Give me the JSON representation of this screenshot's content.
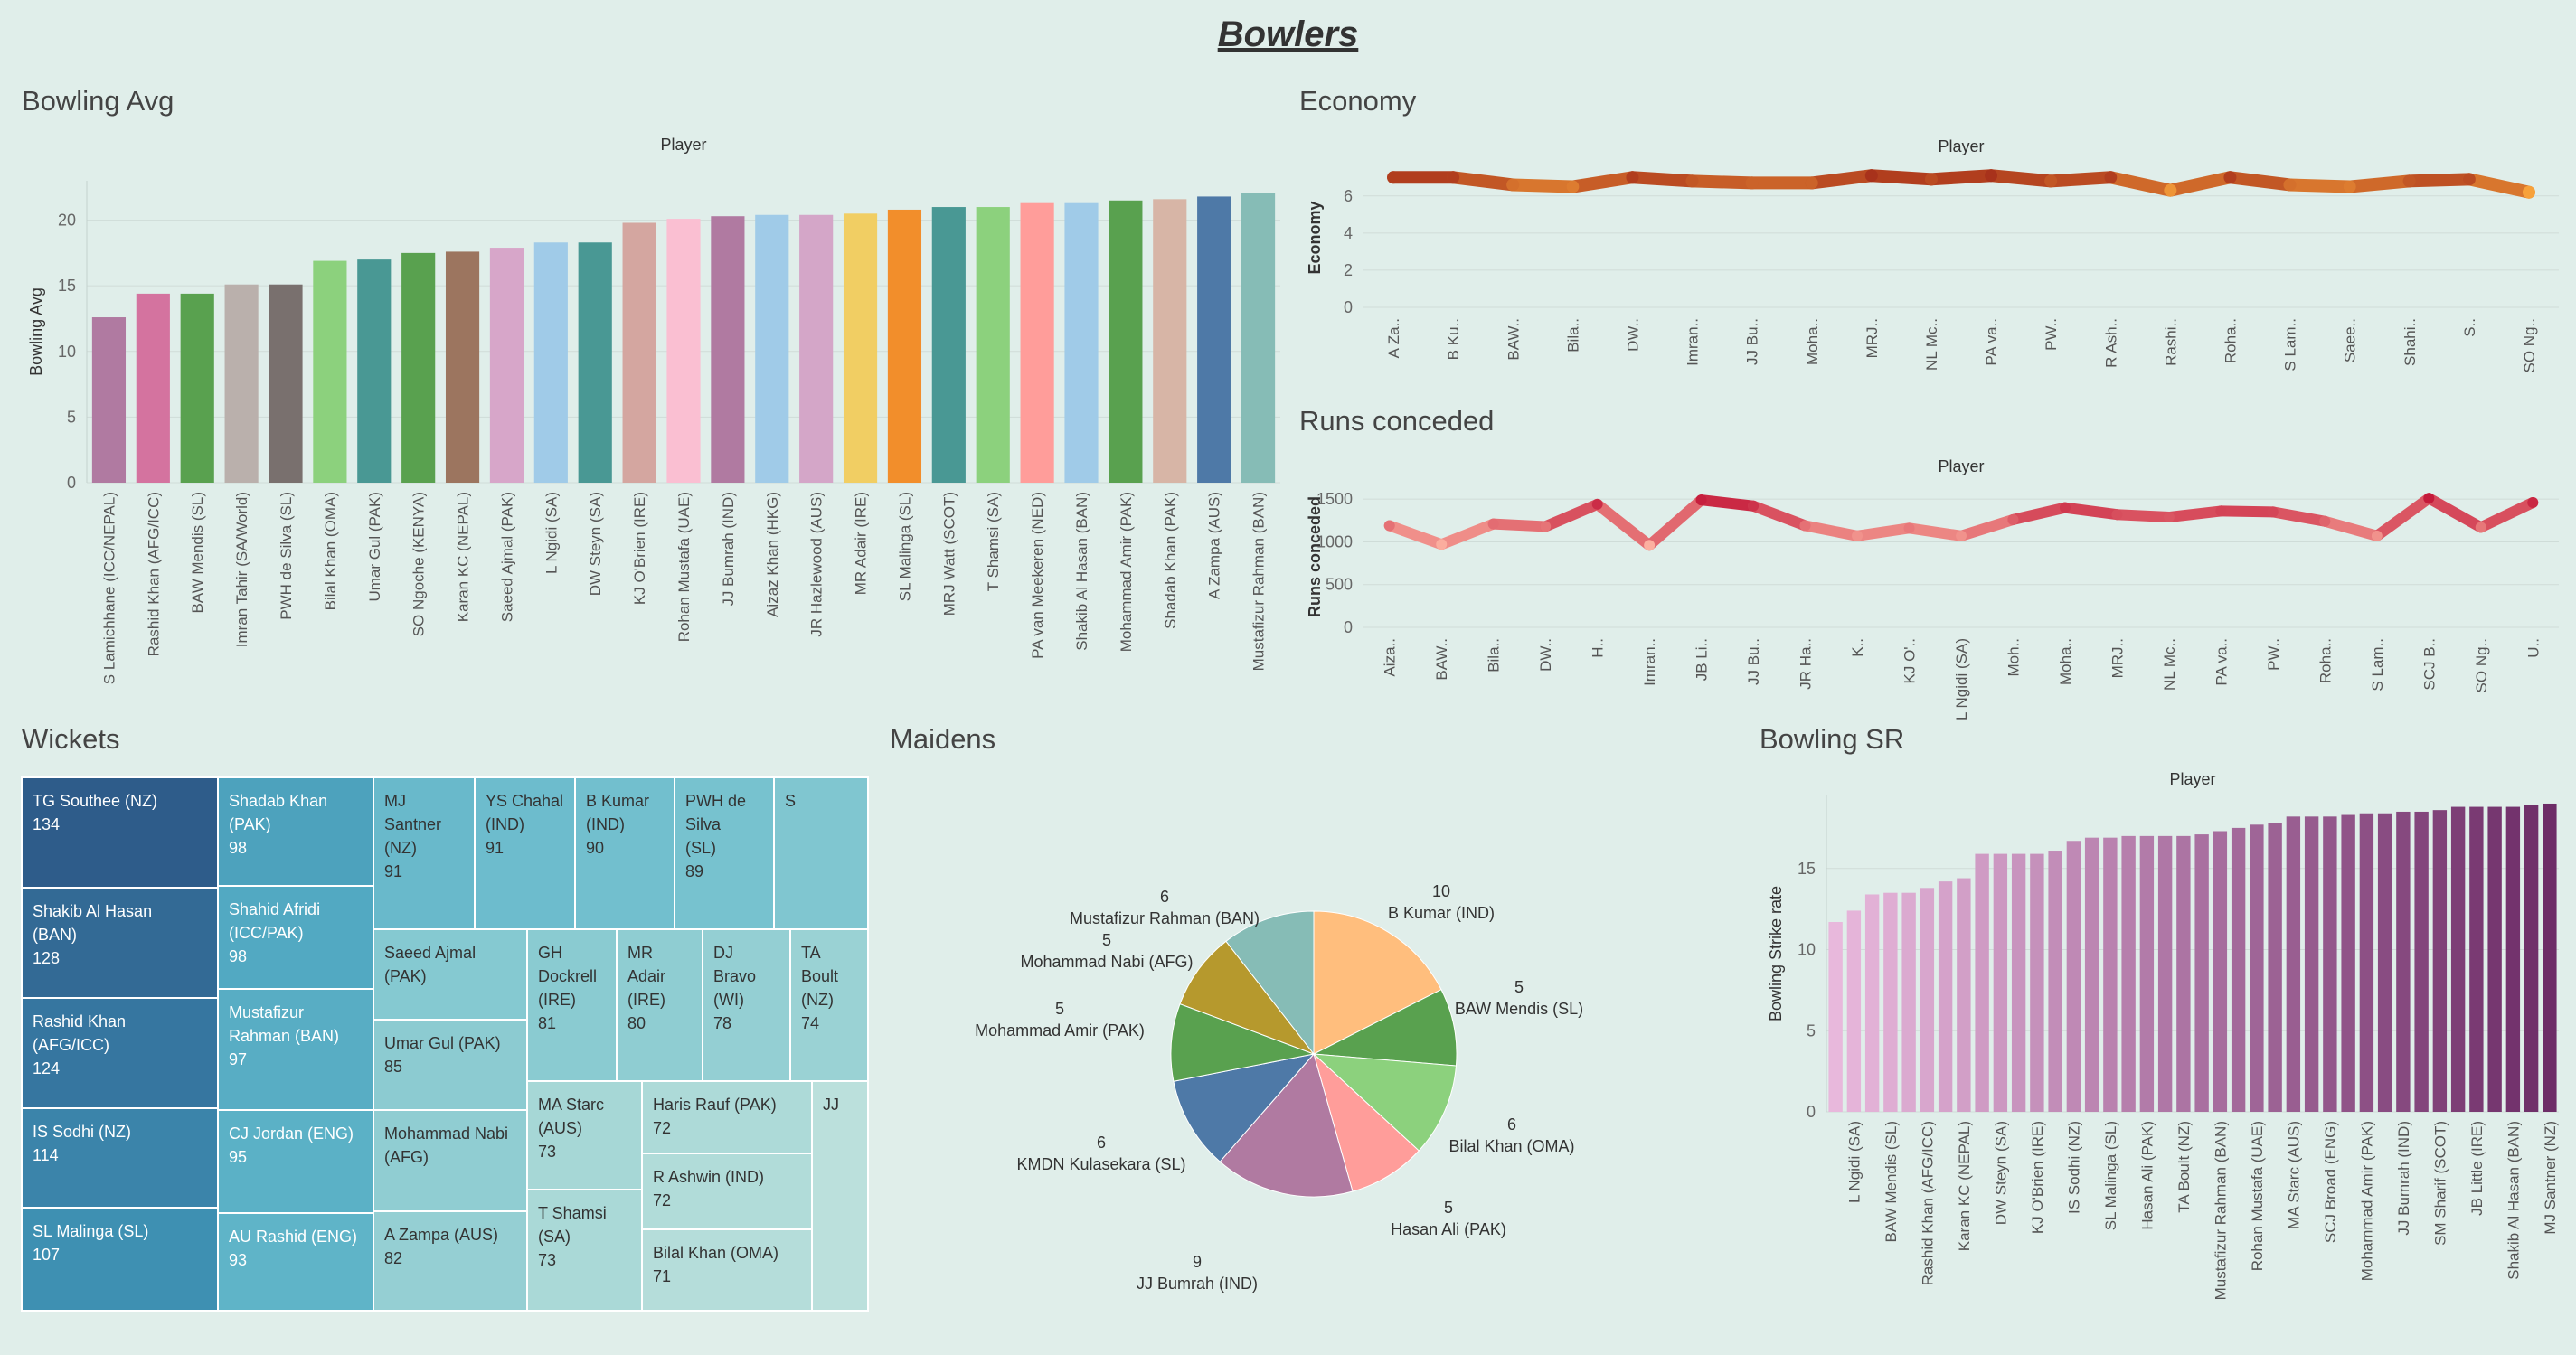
{
  "dashboard_title": "Bowlers",
  "chart_data": [
    {
      "id": "bowling_avg",
      "type": "bar",
      "title": "Bowling Avg",
      "header": "Player",
      "ylabel": "Bowling Avg",
      "ylim": [
        0,
        23
      ],
      "yticks": [
        0,
        5,
        10,
        15,
        20
      ],
      "grid": true,
      "categories": [
        "S Lamichhane (ICC/NEPAL)",
        "Rashid Khan (AFG/ICC)",
        "BAW Mendis (SL)",
        "Imran Tahir (SA/World)",
        "PWH de Silva (SL)",
        "Bilal Khan (OMA)",
        "Umar Gul (PAK)",
        "SO Ngoche (KENYA)",
        "Karan KC (NEPAL)",
        "Saeed Ajmal (PAK)",
        "L Ngidi (SA)",
        "DW Steyn (SA)",
        "KJ O'Brien (IRE)",
        "Rohan Mustafa (UAE)",
        "JJ Bumrah (IND)",
        "Aizaz Khan (HKG)",
        "JR Hazlewood (AUS)",
        "MR Adair (IRE)",
        "SL Malinga (SL)",
        "MRJ Watt (SCOT)",
        "T Shamsi (SA)",
        "PA van Meekeren (NED)",
        "Shakib Al Hasan (BAN)",
        "Mohammad Amir (PAK)",
        "Shadab Khan (PAK)",
        "A Zampa (AUS)",
        "Mustafizur Rahman (BAN)"
      ],
      "values": [
        12.6,
        14.4,
        14.4,
        15.1,
        15.1,
        16.9,
        17.0,
        17.5,
        17.6,
        17.9,
        18.3,
        18.3,
        19.8,
        20.1,
        20.3,
        20.4,
        20.4,
        20.5,
        20.8,
        21.0,
        21.0,
        21.3,
        21.3,
        21.5,
        21.6,
        21.8,
        22.1
      ],
      "colors": [
        "#b07aa1",
        "#d4739f",
        "#59a14f",
        "#bab0ac",
        "#79706e",
        "#8cd17d",
        "#499894",
        "#59a14f",
        "#9c755f",
        "#d7a6c9",
        "#a0cbe8",
        "#499894",
        "#d4a6a0",
        "#fabfd2",
        "#b07aa1",
        "#a0cbe8",
        "#d4a6c8",
        "#f1ce63",
        "#f28e2b",
        "#499894",
        "#8cd17d",
        "#ff9d9a",
        "#a0cbe8",
        "#59a14f",
        "#d7b5a6",
        "#4e79a7",
        "#86bcb6"
      ]
    },
    {
      "id": "economy",
      "type": "line",
      "title": "Economy",
      "header": "Player",
      "ylabel": "Economy",
      "ylim": [
        0,
        7.5
      ],
      "yticks": [
        0,
        2,
        4,
        6
      ],
      "grid": true,
      "categories": [
        "A Za..",
        "B Ku..",
        "BAW..",
        "Bila..",
        "DW..",
        "Imran..",
        "JJ Bu..",
        "Moha..",
        "MRJ..",
        "NL Mc..",
        "PA va..",
        "PW..",
        "R Ash..",
        "Rashi..",
        "Roha..",
        "S Lam..",
        "Saee..",
        "Shahi..",
        "S..",
        "SO Ng.."
      ],
      "values": [
        7.0,
        7.0,
        6.6,
        6.5,
        7.0,
        6.8,
        6.7,
        6.7,
        7.1,
        6.9,
        7.1,
        6.8,
        7.0,
        6.3,
        7.0,
        6.6,
        6.5,
        6.8,
        6.9,
        6.2
      ]
    },
    {
      "id": "runs_conceded",
      "type": "line",
      "title": "Runs conceded",
      "header": "Player",
      "ylabel": "Runs conceded",
      "ylim": [
        0,
        1650
      ],
      "yticks": [
        0,
        500,
        1000,
        1500
      ],
      "yticklabels": [
        "0",
        "500",
        "1000",
        "1500"
      ],
      "grid": true,
      "categories": [
        "Aiza..",
        "BAW..",
        "Bila..",
        "DW..",
        "H..",
        "Imran..",
        "JB Li..",
        "JJ Bu..",
        "JR Ha..",
        "K..",
        "KJ O'..",
        "L Ngidi (SA)",
        "Moh..",
        "Moha..",
        "MRJ..",
        "NL Mc..",
        "PA va..",
        "PW..",
        "Roha..",
        "S Lam..",
        "SCJ B..",
        "SO Ng..",
        "U.."
      ],
      "values": [
        1190,
        970,
        1210,
        1180,
        1440,
        960,
        1490,
        1420,
        1190,
        1070,
        1160,
        1070,
        1260,
        1400,
        1320,
        1290,
        1360,
        1350,
        1240,
        1070,
        1510,
        1170,
        1460
      ]
    },
    {
      "id": "wickets",
      "type": "treemap",
      "title": "Wickets",
      "items": [
        {
          "label": "TG Southee (NZ)",
          "value": "134"
        },
        {
          "label": "Shakib Al Hasan (BAN)",
          "value": "128"
        },
        {
          "label": "Rashid Khan (AFG/ICC)",
          "value": "124"
        },
        {
          "label": "IS Sodhi (NZ)",
          "value": "114"
        },
        {
          "label": "SL Malinga (SL)",
          "value": "107"
        },
        {
          "label": "Shadab Khan (PAK)",
          "value": "98"
        },
        {
          "label": "Shahid Afridi (ICC/PAK)",
          "value": "98"
        },
        {
          "label": "Mustafizur Rahman (BAN)",
          "value": "97"
        },
        {
          "label": "CJ Jordan (ENG)",
          "value": "95"
        },
        {
          "label": "AU Rashid (ENG)",
          "value": "93"
        },
        {
          "label": "MJ Santner (NZ)",
          "value": "91"
        },
        {
          "label": "YS Chahal (IND)",
          "value": "91"
        },
        {
          "label": "B Kumar (IND)",
          "value": "90"
        },
        {
          "label": "PWH de Silva (SL)",
          "value": "89"
        },
        {
          "label": "S",
          "value": ""
        },
        {
          "label": "Saeed Ajmal (PAK)",
          "value": ""
        },
        {
          "label": "GH Dockrell (IRE)",
          "value": "81"
        },
        {
          "label": "MR Adair (IRE)",
          "value": "80"
        },
        {
          "label": "DJ Bravo (WI)",
          "value": "78"
        },
        {
          "label": "TA Boult (NZ)",
          "value": "74"
        },
        {
          "label": "Umar Gul (PAK)",
          "value": "85"
        },
        {
          "label": "Mohammad Nabi (AFG)",
          "value": ""
        },
        {
          "label": "A Zampa (AUS)",
          "value": "82"
        },
        {
          "label": "MA Starc (AUS)",
          "value": "73"
        },
        {
          "label": "T Shamsi (SA)",
          "value": "73"
        },
        {
          "label": "Haris Rauf (PAK)",
          "value": "72"
        },
        {
          "label": "R Ashwin (IND)",
          "value": "72"
        },
        {
          "label": "Bilal Khan (OMA)",
          "value": "71"
        },
        {
          "label": "JJ",
          "value": ""
        }
      ]
    },
    {
      "id": "maidens",
      "type": "pie",
      "title": "Maidens",
      "slices": [
        {
          "name": "B Kumar (IND)",
          "value": 10,
          "color": "#ffbe7d"
        },
        {
          "name": "BAW Mendis (SL)",
          "value": 5,
          "color": "#59a14f"
        },
        {
          "name": "Bilal Khan (OMA)",
          "value": 6,
          "color": "#8cd17d"
        },
        {
          "name": "Hasan Ali (PAK)",
          "value": 5,
          "color": "#ff9d9a"
        },
        {
          "name": "JJ Bumrah (IND)",
          "value": 9,
          "color": "#b07aa1"
        },
        {
          "name": "KMDN Kulasekara (SL)",
          "value": 6,
          "color": "#4e79a7"
        },
        {
          "name": "Mohammad Amir (PAK)",
          "value": 5,
          "color": "#59a14f"
        },
        {
          "name": "Mohammad Nabi (AFG)",
          "value": 5,
          "color": "#b6992d"
        },
        {
          "name": "Mustafizur Rahman (BAN)",
          "value": 6,
          "color": "#86bcb6"
        }
      ]
    },
    {
      "id": "bowling_sr",
      "type": "bar",
      "title": "Bowling SR",
      "header": "Player",
      "ylabel": "Bowling Strike rate",
      "ylim": [
        0,
        19.5
      ],
      "yticks": [
        0,
        5,
        10,
        15
      ],
      "grid": true,
      "categories": [
        "",
        "L Ngidi (SA)",
        "",
        "BAW Mendis (SL)",
        "",
        "Rashid Khan (AFG/ICC)",
        "",
        "Karan KC (NEPAL)",
        "",
        "DW Steyn (SA)",
        "",
        "KJ O'Brien (IRE)",
        "",
        "IS Sodhi (NZ)",
        "",
        "SL Malinga (SL)",
        "",
        "Hasan Ali (PAK)",
        "",
        "TA Boult (NZ)",
        "",
        "Mustafizur Rahman (BAN)",
        "",
        "Rohan Mustafa (UAE)",
        "",
        "MA Starc (AUS)",
        "",
        "SCJ Broad (ENG)",
        "",
        "Mohammad Amir (PAK)",
        "",
        "JJ Bumrah (IND)",
        "",
        "SM Sharif (SCOT)",
        "",
        "JB Little (IRE)",
        "",
        "Shakib Al Hasan (BAN)",
        "",
        "MJ Santner (NZ)"
      ],
      "values": [
        11.7,
        12.4,
        13.4,
        13.5,
        13.5,
        13.8,
        14.2,
        14.4,
        15.9,
        15.9,
        15.9,
        15.9,
        16.1,
        16.7,
        16.9,
        16.9,
        17.0,
        17.0,
        17.0,
        17.0,
        17.1,
        17.3,
        17.5,
        17.7,
        17.8,
        18.2,
        18.2,
        18.2,
        18.3,
        18.4,
        18.4,
        18.5,
        18.5,
        18.6,
        18.8,
        18.8,
        18.8,
        18.8,
        18.9,
        19.0
      ]
    }
  ]
}
